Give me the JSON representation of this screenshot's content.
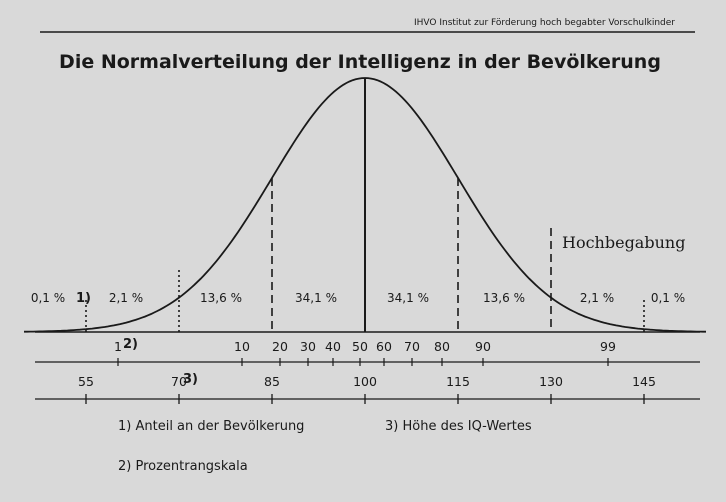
{
  "header": {
    "institute": "IHVO Institut zur Förderung hoch begabter Vorschulkinder"
  },
  "title": "Die Normalverteilung der Intelligenz in der Bevölkerung",
  "hochbegabung_label": "Hochbegabung",
  "bands": [
    {
      "label": "0,1 %"
    },
    {
      "label": "2,1 %"
    },
    {
      "label": "13,6 %"
    },
    {
      "label": "34,1 %"
    },
    {
      "label": "34,1 %"
    },
    {
      "label": "13,6 %"
    },
    {
      "label": "2,1 %"
    },
    {
      "label": "0,1 %"
    }
  ],
  "markers": {
    "m1": "1)",
    "m2": "2)",
    "m3": "3)"
  },
  "percentile_scale": {
    "ticks": [
      "1",
      "10",
      "20",
      "30",
      "40",
      "50",
      "60",
      "70",
      "80",
      "90",
      "99"
    ]
  },
  "iq_scale": {
    "ticks": [
      "55",
      "70",
      "85",
      "100",
      "115",
      "130",
      "145"
    ]
  },
  "legend": {
    "item1": "1) Anteil an der Bevölkerung",
    "item2": "2) Prozentrangskala",
    "item3": "3) Höhe des IQ-Wertes"
  },
  "chart_data": {
    "type": "area",
    "curve": "normal distribution",
    "mean": 100,
    "sd": 15,
    "xlim": [
      45,
      155
    ],
    "bands": [
      {
        "from": 45,
        "to": 55,
        "percent": 0.1
      },
      {
        "from": 55,
        "to": 70,
        "percent": 2.1
      },
      {
        "from": 70,
        "to": 85,
        "percent": 13.6
      },
      {
        "from": 85,
        "to": 100,
        "percent": 34.1
      },
      {
        "from": 100,
        "to": 115,
        "percent": 34.1
      },
      {
        "from": 115,
        "to": 130,
        "percent": 13.6
      },
      {
        "from": 130,
        "to": 145,
        "percent": 2.1
      },
      {
        "from": 145,
        "to": 155,
        "percent": 0.1
      }
    ],
    "percentile_ticks": [
      1,
      10,
      20,
      30,
      40,
      50,
      60,
      70,
      80,
      90,
      99
    ],
    "iq_ticks": [
      55,
      70,
      85,
      100,
      115,
      130,
      145
    ],
    "hochbegabung_threshold": 130
  }
}
